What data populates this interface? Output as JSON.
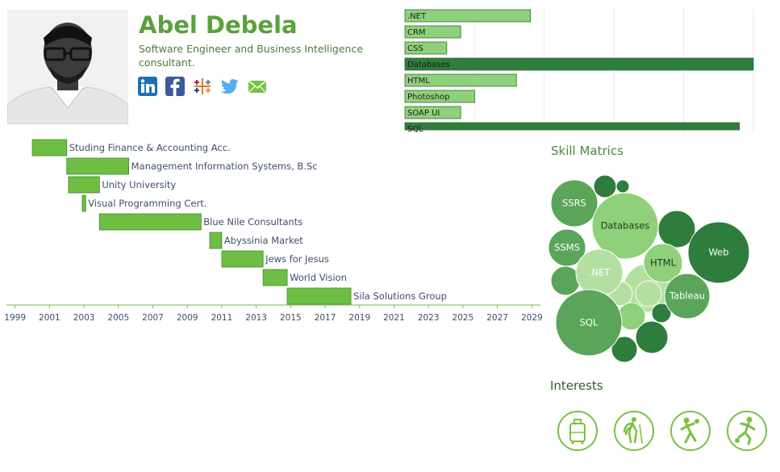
{
  "header": {
    "name": "Abel Debela",
    "subtitle": "Software Engineer and Business Intelligence consultant.",
    "social": [
      "linkedin-icon",
      "facebook-icon",
      "tableau-icon",
      "twitter-icon",
      "email-icon"
    ]
  },
  "colors": {
    "accent_green": "#5aa13a",
    "light_green": "#8fd07a",
    "dark_green": "#2e7d3c",
    "bar_green": "#6fbe44",
    "axis": "#6fbe44"
  },
  "skills_chart": {
    "type": "bar",
    "categories": [
      ".NET",
      "CRM",
      "CSS",
      "Databases",
      "HTML",
      "Photoshop",
      "SOAP UI",
      "SQL"
    ],
    "values": [
      36,
      16,
      12,
      100,
      32,
      20,
      16,
      96
    ],
    "highlight": [
      "Databases",
      "SQL"
    ],
    "xlim": [
      0,
      100
    ],
    "grid": true
  },
  "chart_data": {
    "type": "bar",
    "categories": [
      "Studing Finance & Accounting Acc.",
      "Management Information Systems, B.Sc",
      "Unity University",
      "Visual Programming Cert.",
      "Blue Nile Consultants",
      "Abyssinia Market",
      "Jews for Jesus",
      "World Vision",
      "Sila Solutions Group"
    ],
    "start": [
      2000.0,
      2002.0,
      2002.1,
      2002.9,
      2003.9,
      2010.3,
      2011.0,
      2013.4,
      2014.8
    ],
    "end": [
      2002.0,
      2005.6,
      2003.9,
      2003.1,
      2009.8,
      2011.0,
      2013.4,
      2014.8,
      2018.5
    ],
    "xlim": [
      1998.5,
      2029.5
    ],
    "ticks": [
      "1999",
      "2001",
      "2003",
      "2005",
      "2007",
      "2009",
      "2011",
      "2013",
      "2015",
      "2017",
      "2019",
      "2021",
      "2023",
      "2025",
      "2027",
      "2029"
    ]
  },
  "skill_matrics": {
    "title": "Skill Matrics",
    "bubbles": [
      {
        "label": "SSRS",
        "shade": "mid"
      },
      {
        "label": "Databases",
        "shade": "light"
      },
      {
        "label": "SSMS",
        "shade": "mid"
      },
      {
        "label": ".NET",
        "shade": "pale"
      },
      {
        "label": "HTML",
        "shade": "light"
      },
      {
        "label": "Web",
        "shade": "dark"
      },
      {
        "label": "Tableau",
        "shade": "mid"
      },
      {
        "label": "SQL",
        "shade": "mid"
      }
    ]
  },
  "interests": {
    "title": "Interests",
    "items": [
      "travel-icon",
      "hiking-icon",
      "basketball-icon",
      "soccer-icon"
    ]
  }
}
